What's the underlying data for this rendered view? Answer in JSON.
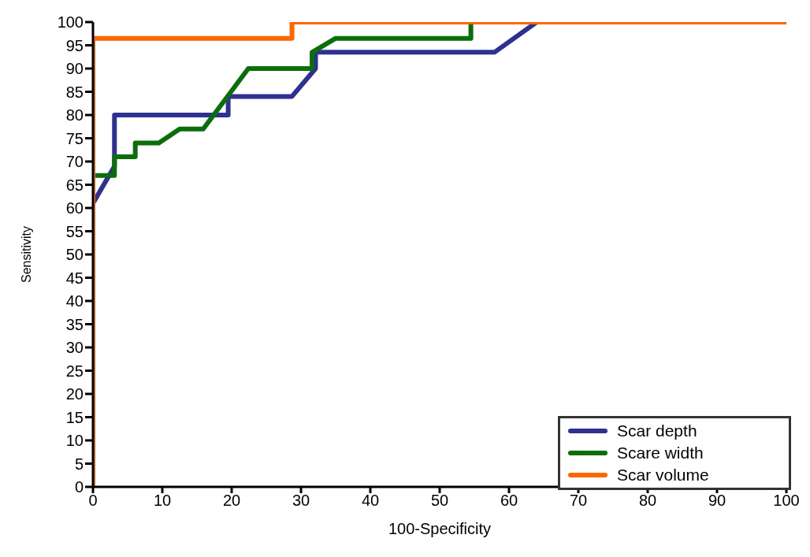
{
  "chart_data": {
    "type": "line",
    "xlabel": "100-Specificity",
    "ylabel": "Sensitivity",
    "xlim": [
      0,
      100
    ],
    "xticks": [
      0,
      10,
      20,
      30,
      40,
      50,
      60,
      70,
      80,
      90,
      100
    ],
    "ylim": [
      0,
      100
    ],
    "yticks": [
      0,
      5,
      10,
      15,
      20,
      25,
      30,
      35,
      40,
      45,
      50,
      55,
      60,
      65,
      70,
      75,
      80,
      85,
      90,
      95,
      100
    ],
    "grid": false,
    "legend": "bottom right",
    "marker": "none",
    "line_style": "solid",
    "series": [
      {
        "name": "Scar depth",
        "color": "#2e3192",
        "x": [
          0,
          3.1,
          3.1,
          19.5,
          19.5,
          28.7,
          32.1,
          32.1,
          57.9,
          64
        ],
        "values": [
          61,
          69,
          80,
          80,
          84,
          84,
          90,
          93.5,
          93.5,
          100
        ]
      },
      {
        "name": "Scare width",
        "color": "#0a6e0a",
        "x": [
          0,
          3.1,
          3.1,
          6.1,
          6.1,
          9.5,
          12.5,
          15.9,
          22.4,
          31.6,
          31.6,
          35,
          54.5,
          54.5
        ],
        "values": [
          67,
          67,
          71,
          71,
          74,
          74,
          77,
          77,
          90,
          90,
          93.5,
          96.5,
          96.5,
          100
        ]
      },
      {
        "name": "Scar volume",
        "color": "#ff6600",
        "x": [
          0,
          0,
          28.7,
          28.7,
          100
        ],
        "values": [
          0,
          96.5,
          96.5,
          100,
          100
        ]
      }
    ]
  }
}
